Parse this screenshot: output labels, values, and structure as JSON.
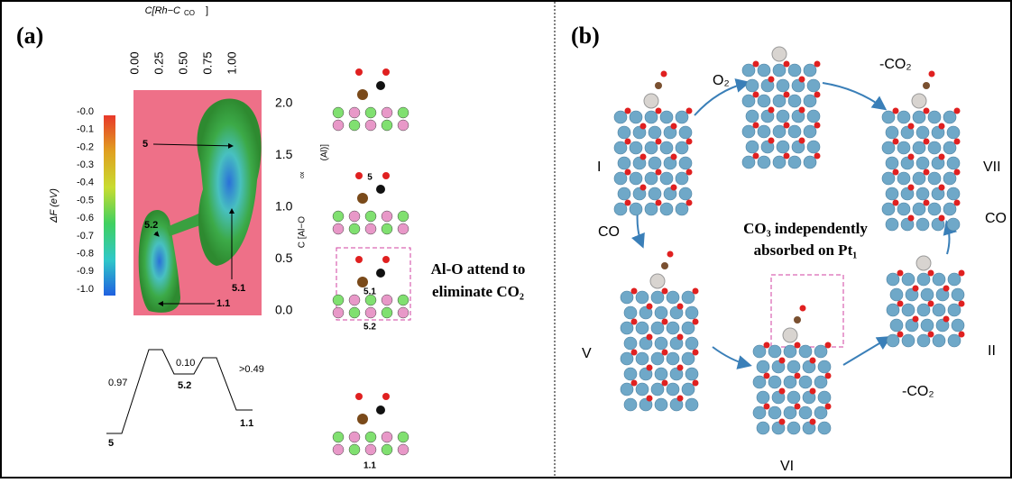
{
  "panel_a": {
    "label": "(a)",
    "x_axis_title": "C[Rh−C",
    "x_axis_sub": "CO",
    "x_axis_close": "]",
    "x_ticks": [
      "0.00",
      "0.25",
      "0.50",
      "0.75",
      "1.00"
    ],
    "y_axis_title": "C [Al−O",
    "y_axis_sub": "ox",
    "y_axis_close": "(Al)]",
    "y_ticks": [
      "2.0",
      "1.5",
      "1.0",
      "0.5",
      "0.0"
    ],
    "colorbar_label": "ΔF (eV)",
    "colorbar_ticks": [
      "-0.0",
      "-0.1",
      "-0.2",
      "-0.3",
      "-0.4",
      "-0.5",
      "-0.6",
      "-0.7",
      "-0.8",
      "-0.9",
      "-1.0"
    ],
    "map_points": [
      "5",
      "5.2",
      "5.1",
      "1.1"
    ],
    "profile": {
      "barriers": [
        "0.97",
        "0.10",
        ">0.49"
      ],
      "states": [
        "5",
        "5.2",
        "1.1"
      ]
    },
    "structures": [
      "5",
      "5.1",
      "5.2",
      "1.1"
    ],
    "annotation": [
      "Al-O attend to",
      "eliminate CO₂"
    ]
  },
  "panel_b": {
    "label": "(b)",
    "steps": [
      "O₂",
      "-CO₂",
      "CO",
      "CO",
      "-CO₂"
    ],
    "states": [
      "I",
      "VII",
      "V",
      "VI",
      "II"
    ],
    "annotation": [
      "CO₃ independently",
      "absorbed on Pt₁"
    ]
  }
}
